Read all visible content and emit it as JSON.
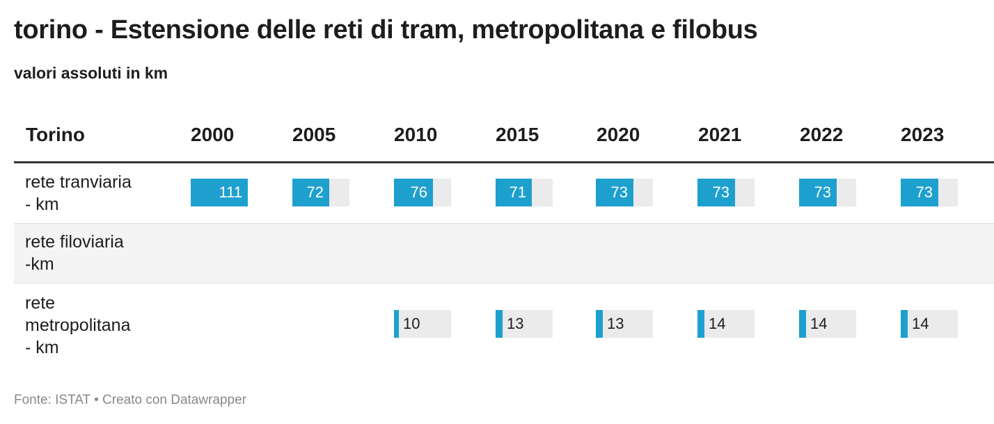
{
  "title": "torino - Estensione delle reti di tram, metropolitana e filobus",
  "subtitle": "valori assoluti in km",
  "footer": "Fonte: ISTAT • Creato con Datawrapper",
  "colors": {
    "bar": "#1ea0cf",
    "track": "#ebebeb",
    "shaded_row": "#f4f4f4"
  },
  "chart_data": {
    "type": "table",
    "row_header": "Torino",
    "columns": [
      "2000",
      "2005",
      "2010",
      "2015",
      "2020",
      "2021",
      "2022",
      "2023"
    ],
    "max_value": 111,
    "rows": [
      {
        "label": "rete tranviaria\n- km",
        "values": [
          111,
          72,
          76,
          71,
          73,
          73,
          73,
          73
        ]
      },
      {
        "label": "rete filoviaria\n-km",
        "values": [
          null,
          null,
          null,
          null,
          null,
          null,
          null,
          null
        ]
      },
      {
        "label": "rete\nmetropolitana\n- km",
        "values": [
          null,
          null,
          10,
          13,
          13,
          14,
          14,
          14
        ]
      }
    ]
  }
}
